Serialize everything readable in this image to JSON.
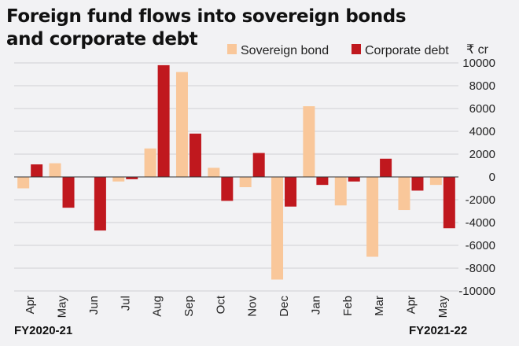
{
  "chart_data": {
    "type": "bar",
    "title": "Foreign fund flows into sovereign bonds and corporate debt",
    "title_lines": [
      "Foreign fund flows into sovereign bonds",
      "and corporate debt"
    ],
    "unit_label": "₹ cr",
    "categories": [
      "Apr",
      "May",
      "Jun",
      "Jul",
      "Aug",
      "Sep",
      "Oct",
      "Nov",
      "Dec",
      "Jan",
      "Feb",
      "Mar",
      "Apr",
      "May"
    ],
    "fiscal_year_labels": [
      "FY2020-21",
      "FY2021-22"
    ],
    "series": [
      {
        "name": "Sovereign bond",
        "color": "#f9c79a",
        "values": [
          -1000,
          1200,
          0,
          -400,
          2500,
          9200,
          800,
          -900,
          -9000,
          6200,
          -2500,
          -7000,
          -2900,
          -700
        ]
      },
      {
        "name": "Corporate debt",
        "color": "#c0181e",
        "values": [
          1100,
          -2700,
          -4700,
          -200,
          9800,
          3800,
          -2100,
          2100,
          -2600,
          -700,
          -400,
          1600,
          -1200,
          -4500
        ]
      }
    ],
    "ylim": [
      -10000,
      10000
    ],
    "yticks": [
      -10000,
      -8000,
      -6000,
      -4000,
      -2000,
      0,
      2000,
      4000,
      6000,
      8000,
      10000
    ],
    "grid": true,
    "legend_position": "top-right"
  }
}
